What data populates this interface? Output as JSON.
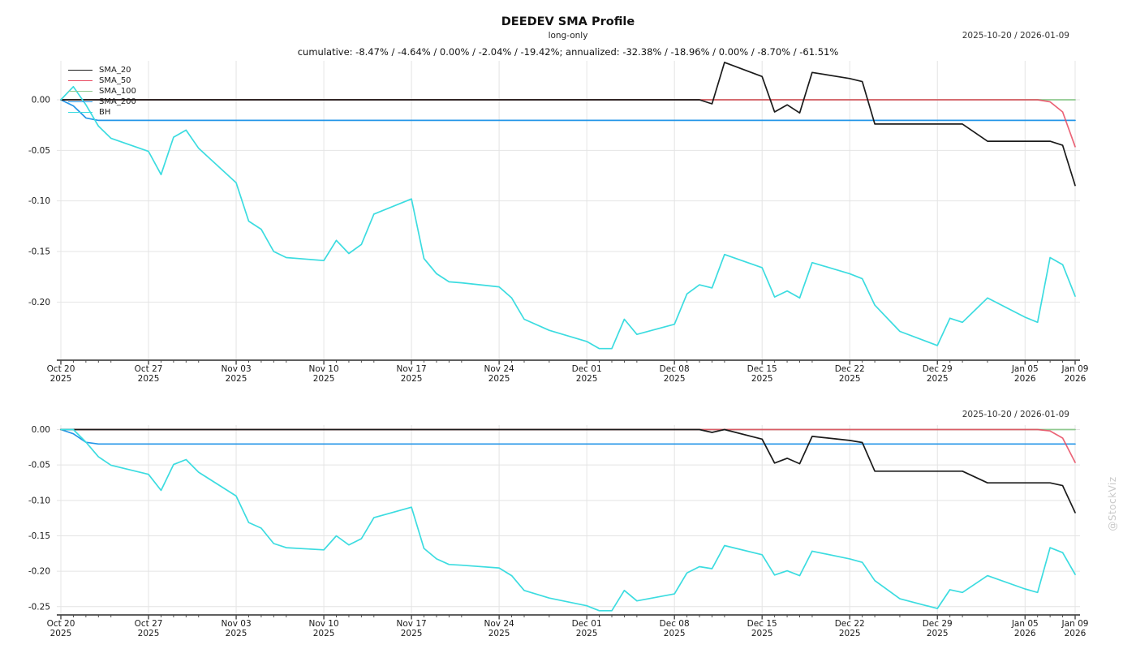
{
  "header": {
    "title": "DEEDEV SMA Profile",
    "subtitle": "long-only",
    "stats_line": "cumulative: -8.47% / -4.64% / 0.00% / -2.04% / -19.42%; annualized: -32.38% / -18.96% / 0.00% / -8.70% / -61.51%"
  },
  "watermark": "@StockViz",
  "colors": {
    "grid": "#e4e4e4",
    "axis": "#4a4a4a",
    "tick_text": "#1a1a1a",
    "watermark": "#c9c9c9"
  },
  "chart_data": [
    {
      "type": "line",
      "title": "2025-10-20 / 2026-01-09",
      "xlabel": "",
      "ylabel": "",
      "grid": true,
      "legend_position": "top-left",
      "xlim": [
        0,
        81
      ],
      "ylim": [
        -0.2575,
        0.0385
      ],
      "yticks": [
        {
          "v": 0.0,
          "label": "0.00"
        },
        {
          "v": -0.05,
          "label": "-0.05"
        },
        {
          "v": -0.1,
          "label": "-0.10"
        },
        {
          "v": -0.15,
          "label": "-0.15"
        },
        {
          "v": -0.2,
          "label": "-0.20"
        }
      ],
      "x_days": [
        0,
        1,
        2,
        3,
        4,
        7,
        8,
        9,
        10,
        11,
        14,
        15,
        16,
        17,
        18,
        21,
        22,
        23,
        24,
        25,
        28,
        29,
        30,
        31,
        32,
        35,
        36,
        37,
        39,
        42,
        43,
        44,
        45,
        46,
        49,
        50,
        51,
        52,
        53,
        56,
        57,
        58,
        59,
        60,
        63,
        64,
        65,
        67,
        70,
        71,
        72,
        74,
        77,
        78,
        79,
        80,
        81
      ],
      "x_tick_days": [
        0,
        7,
        14,
        21,
        28,
        35,
        42,
        49,
        56,
        63,
        70,
        77,
        81
      ],
      "x_tick_labels": [
        [
          "Oct 20",
          "2025"
        ],
        [
          "Oct 27",
          "2025"
        ],
        [
          "Nov 03",
          "2025"
        ],
        [
          "Nov 10",
          "2025"
        ],
        [
          "Nov 17",
          "2025"
        ],
        [
          "Nov 24",
          "2025"
        ],
        [
          "Dec 01",
          "2025"
        ],
        [
          "Dec 08",
          "2025"
        ],
        [
          "Dec 15",
          "2025"
        ],
        [
          "Dec 22",
          "2025"
        ],
        [
          "Dec 29",
          "2025"
        ],
        [
          "Jan 05",
          "2026"
        ],
        [
          "Jan 09",
          "2026"
        ]
      ],
      "series": [
        {
          "name": "SMA_20",
          "color": "#1b1b1b",
          "values": [
            0,
            0,
            0,
            0,
            0,
            0,
            0,
            0,
            0,
            0,
            0,
            0,
            0,
            0,
            0,
            0,
            0,
            0,
            0,
            0,
            0,
            0,
            0,
            0,
            0,
            0,
            0,
            0,
            0,
            0,
            0,
            0,
            0,
            0,
            0,
            0,
            0,
            -0.004,
            0.037,
            0.023,
            -0.012,
            -0.005,
            -0.013,
            0.027,
            0.021,
            0.018,
            -0.024,
            -0.024,
            -0.024,
            -0.024,
            -0.024,
            -0.041,
            -0.041,
            -0.041,
            -0.041,
            -0.045,
            -0.0847
          ]
        },
        {
          "name": "SMA_50",
          "color": "#e8495f",
          "values": [
            0,
            0,
            0,
            0,
            0,
            0,
            0,
            0,
            0,
            0,
            0,
            0,
            0,
            0,
            0,
            0,
            0,
            0,
            0,
            0,
            0,
            0,
            0,
            0,
            0,
            0,
            0,
            0,
            0,
            0,
            0,
            0,
            0,
            0,
            0,
            0,
            0,
            0,
            0,
            0,
            0,
            0,
            0,
            0,
            0,
            0,
            0,
            0,
            0,
            0,
            0,
            0,
            0,
            0,
            -0.002,
            -0.012,
            -0.0464
          ]
        },
        {
          "name": "SMA_100",
          "color": "#8fc98f",
          "values": [
            0,
            0,
            0,
            0,
            0,
            0,
            0,
            0,
            0,
            0,
            0,
            0,
            0,
            0,
            0,
            0,
            0,
            0,
            0,
            0,
            0,
            0,
            0,
            0,
            0,
            0,
            0,
            0,
            0,
            0,
            0,
            0,
            0,
            0,
            0,
            0,
            0,
            0,
            0,
            0,
            0,
            0,
            0,
            0,
            0,
            0,
            0,
            0,
            0,
            0,
            0,
            0,
            0,
            0,
            0,
            0,
            0
          ]
        },
        {
          "name": "SMA_200",
          "color": "#2496e8",
          "values": [
            0,
            -0.006,
            -0.018,
            -0.0204,
            -0.0204,
            -0.0204,
            -0.0204,
            -0.0204,
            -0.0204,
            -0.0204,
            -0.0204,
            -0.0204,
            -0.0204,
            -0.0204,
            -0.0204,
            -0.0204,
            -0.0204,
            -0.0204,
            -0.0204,
            -0.0204,
            -0.0204,
            -0.0204,
            -0.0204,
            -0.0204,
            -0.0204,
            -0.0204,
            -0.0204,
            -0.0204,
            -0.0204,
            -0.0204,
            -0.0204,
            -0.0204,
            -0.0204,
            -0.0204,
            -0.0204,
            -0.0204,
            -0.0204,
            -0.0204,
            -0.0204,
            -0.0204,
            -0.0204,
            -0.0204,
            -0.0204,
            -0.0204,
            -0.0204,
            -0.0204,
            -0.0204,
            -0.0204,
            -0.0204,
            -0.0204,
            -0.0204,
            -0.0204,
            -0.0204,
            -0.0204,
            -0.0204,
            -0.0204,
            -0.0204
          ]
        },
        {
          "name": "BH",
          "color": "#3cdce0",
          "values": [
            0,
            0.013,
            -0.005,
            -0.026,
            -0.038,
            -0.051,
            -0.074,
            -0.037,
            -0.03,
            -0.048,
            -0.082,
            -0.12,
            -0.128,
            -0.15,
            -0.156,
            -0.159,
            -0.139,
            -0.152,
            -0.143,
            -0.113,
            -0.098,
            -0.157,
            -0.172,
            -0.18,
            -0.181,
            -0.185,
            -0.196,
            -0.217,
            -0.228,
            -0.239,
            -0.246,
            -0.246,
            -0.217,
            -0.232,
            -0.222,
            -0.192,
            -0.183,
            -0.186,
            -0.153,
            -0.166,
            -0.195,
            -0.189,
            -0.196,
            -0.161,
            -0.172,
            -0.177,
            -0.203,
            -0.229,
            -0.243,
            -0.216,
            -0.22,
            -0.196,
            -0.215,
            -0.22,
            -0.156,
            -0.163,
            -0.1942
          ]
        }
      ]
    },
    {
      "type": "line",
      "title": "2025-10-20 / 2026-01-09",
      "xlabel": "",
      "ylabel": "",
      "grid": true,
      "legend_position": "none",
      "xlim": [
        0,
        81
      ],
      "ylim": [
        -0.2617,
        0.0063
      ],
      "yticks": [
        {
          "v": 0.0,
          "label": "0.00"
        },
        {
          "v": -0.05,
          "label": "-0.05"
        },
        {
          "v": -0.1,
          "label": "-0.10"
        },
        {
          "v": -0.15,
          "label": "-0.15"
        },
        {
          "v": -0.2,
          "label": "-0.20"
        },
        {
          "v": -0.25,
          "label": "-0.25"
        }
      ],
      "x_days": [
        0,
        1,
        2,
        3,
        4,
        7,
        8,
        9,
        10,
        11,
        14,
        15,
        16,
        17,
        18,
        21,
        22,
        23,
        24,
        25,
        28,
        29,
        30,
        31,
        32,
        35,
        36,
        37,
        39,
        42,
        43,
        44,
        45,
        46,
        49,
        50,
        51,
        52,
        53,
        56,
        57,
        58,
        59,
        60,
        63,
        64,
        65,
        67,
        70,
        71,
        72,
        74,
        77,
        78,
        79,
        80,
        81
      ],
      "x_tick_days": [
        0,
        7,
        14,
        21,
        28,
        35,
        42,
        49,
        56,
        63,
        70,
        77,
        81
      ],
      "x_tick_labels": [
        [
          "Oct 20",
          "2025"
        ],
        [
          "Oct 27",
          "2025"
        ],
        [
          "Nov 03",
          "2025"
        ],
        [
          "Nov 10",
          "2025"
        ],
        [
          "Nov 17",
          "2025"
        ],
        [
          "Nov 24",
          "2025"
        ],
        [
          "Dec 01",
          "2025"
        ],
        [
          "Dec 08",
          "2025"
        ],
        [
          "Dec 15",
          "2025"
        ],
        [
          "Dec 22",
          "2025"
        ],
        [
          "Dec 29",
          "2025"
        ],
        [
          "Jan 05",
          "2026"
        ],
        [
          "Jan 09",
          "2026"
        ]
      ],
      "series": [
        {
          "name": "SMA_20",
          "color": "#1b1b1b",
          "values": [
            0,
            0,
            0,
            0,
            0,
            0,
            0,
            0,
            0,
            0,
            0,
            0,
            0,
            0,
            0,
            0,
            0,
            0,
            0,
            0,
            0,
            0,
            0,
            0,
            0,
            0,
            0,
            0,
            0,
            0,
            0,
            0,
            0,
            0,
            0,
            0,
            0,
            -0.004,
            0,
            -0.0135,
            -0.0473,
            -0.0405,
            -0.0482,
            -0.0096,
            -0.0154,
            -0.0183,
            -0.0588,
            -0.0588,
            -0.0588,
            -0.0588,
            -0.0588,
            -0.0752,
            -0.0752,
            -0.0752,
            -0.0752,
            -0.0791,
            -0.1173
          ]
        },
        {
          "name": "SMA_50",
          "color": "#e8495f",
          "values": [
            0,
            0,
            0,
            0,
            0,
            0,
            0,
            0,
            0,
            0,
            0,
            0,
            0,
            0,
            0,
            0,
            0,
            0,
            0,
            0,
            0,
            0,
            0,
            0,
            0,
            0,
            0,
            0,
            0,
            0,
            0,
            0,
            0,
            0,
            0,
            0,
            0,
            0,
            0,
            0,
            0,
            0,
            0,
            0,
            0,
            0,
            0,
            0,
            0,
            0,
            0,
            0,
            0,
            0,
            -0.002,
            -0.012,
            -0.0464
          ]
        },
        {
          "name": "SMA_100",
          "color": "#8fc98f",
          "values": [
            0,
            0,
            0,
            0,
            0,
            0,
            0,
            0,
            0,
            0,
            0,
            0,
            0,
            0,
            0,
            0,
            0,
            0,
            0,
            0,
            0,
            0,
            0,
            0,
            0,
            0,
            0,
            0,
            0,
            0,
            0,
            0,
            0,
            0,
            0,
            0,
            0,
            0,
            0,
            0,
            0,
            0,
            0,
            0,
            0,
            0,
            0,
            0,
            0,
            0,
            0,
            0,
            0,
            0,
            0,
            0,
            0
          ]
        },
        {
          "name": "SMA_200",
          "color": "#2496e8",
          "values": [
            0,
            -0.006,
            -0.018,
            -0.0204,
            -0.0204,
            -0.0204,
            -0.0204,
            -0.0204,
            -0.0204,
            -0.0204,
            -0.0204,
            -0.0204,
            -0.0204,
            -0.0204,
            -0.0204,
            -0.0204,
            -0.0204,
            -0.0204,
            -0.0204,
            -0.0204,
            -0.0204,
            -0.0204,
            -0.0204,
            -0.0204,
            -0.0204,
            -0.0204,
            -0.0204,
            -0.0204,
            -0.0204,
            -0.0204,
            -0.0204,
            -0.0204,
            -0.0204,
            -0.0204,
            -0.0204,
            -0.0204,
            -0.0204,
            -0.0204,
            -0.0204,
            -0.0204,
            -0.0204,
            -0.0204,
            -0.0204,
            -0.0204,
            -0.0204,
            -0.0204,
            -0.0204,
            -0.0204,
            -0.0204,
            -0.0204,
            -0.0204,
            -0.0204,
            -0.0204,
            -0.0204,
            -0.0204,
            -0.0204,
            -0.0204
          ]
        },
        {
          "name": "BH",
          "color": "#3cdce0",
          "values": [
            0,
            0,
            -0.0178,
            -0.0385,
            -0.0503,
            -0.0632,
            -0.0859,
            -0.0494,
            -0.0424,
            -0.0602,
            -0.0938,
            -0.1313,
            -0.1392,
            -0.1609,
            -0.1668,
            -0.1698,
            -0.15,
            -0.1629,
            -0.154,
            -0.1244,
            -0.1096,
            -0.1678,
            -0.1826,
            -0.1905,
            -0.1915,
            -0.1954,
            -0.2063,
            -0.2271,
            -0.2379,
            -0.2488,
            -0.2557,
            -0.2557,
            -0.2271,
            -0.2419,
            -0.232,
            -0.2024,
            -0.1935,
            -0.1964,
            -0.1638,
            -0.1767,
            -0.2053,
            -0.1994,
            -0.2063,
            -0.1717,
            -0.1826,
            -0.1875,
            -0.2132,
            -0.2389,
            -0.2527,
            -0.2261,
            -0.23,
            -0.2063,
            -0.2251,
            -0.23,
            -0.1668,
            -0.1737,
            -0.2045
          ]
        }
      ]
    }
  ]
}
